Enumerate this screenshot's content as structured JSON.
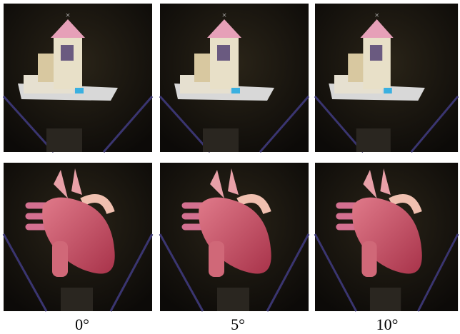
{
  "captions": [
    "0°",
    "5°",
    "10°"
  ]
}
